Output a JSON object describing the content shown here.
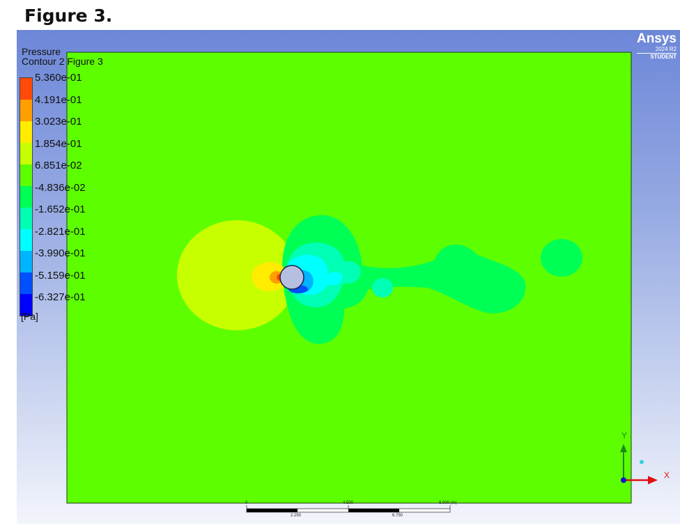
{
  "figure_title": "Figure 3.",
  "legend": {
    "variable": "Pressure",
    "contour_name": "Contour 2 Figure 3",
    "levels": [
      "5.360e-01",
      "4.191e-01",
      "3.023e-01",
      "1.854e-01",
      "6.851e-02",
      "-4.836e-02",
      "-1.652e-01",
      "-2.821e-01",
      "-3.990e-01",
      "-5.159e-01",
      "-6.327e-01"
    ],
    "colors": [
      "#ff4a08",
      "#ffa000",
      "#ffec00",
      "#c8ff00",
      "#5dff00",
      "#00ff55",
      "#00ffb4",
      "#00ffff",
      "#00b4ff",
      "#0050ff",
      "#0000ff"
    ],
    "unit": "[Pa]"
  },
  "brand": {
    "name": "Ansys",
    "version": "2024 R2",
    "edition": "STUDENT"
  },
  "scale_bar": {
    "top_labels": [
      "0",
      "4.500",
      "9.000 (m)"
    ],
    "bottom_labels": [
      "2.250",
      "6.750"
    ]
  },
  "axes": {
    "x_label": "X",
    "y_label": "Y"
  },
  "colors": {
    "background_field": "#5dff00",
    "cylinder": "#b5c0e0"
  }
}
